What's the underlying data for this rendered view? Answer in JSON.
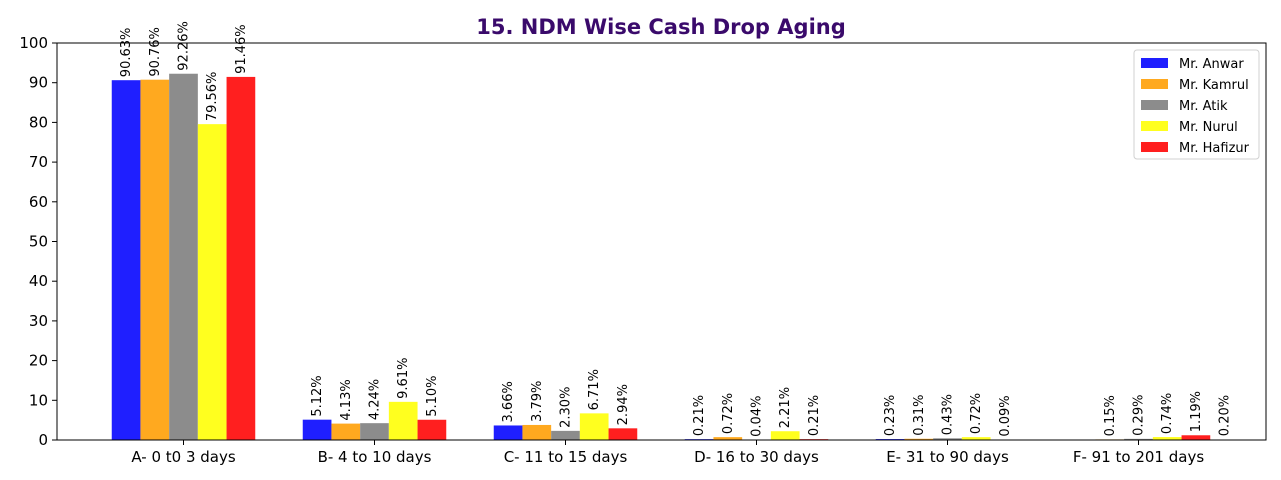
{
  "chart_data": {
    "type": "bar",
    "title": "15. NDM Wise Cash Drop Aging",
    "xlabel": "",
    "ylabel": "",
    "ylim": [
      0,
      100
    ],
    "yticks": [
      "0",
      "10",
      "20",
      "30",
      "40",
      "50",
      "60",
      "70",
      "80",
      "90",
      "100"
    ],
    "grid": false,
    "legend_position": "top-right",
    "categories": [
      "A- 0 t0 3 days",
      "B- 4 to 10 days",
      "C- 11 to 15 days",
      "D- 16 to 30 days",
      "E- 31 to 90 days",
      "F- 91 to 201 days"
    ],
    "series": [
      {
        "name": "Mr. Anwar",
        "color": "#1f1fff",
        "values": [
          90.63,
          5.12,
          3.66,
          0.21,
          0.23,
          null
        ],
        "labels": [
          "90.63%",
          "5.12%",
          "3.66%",
          "0.21%",
          "0.23%",
          ""
        ]
      },
      {
        "name": "Mr. Kamrul",
        "color": "#ffa91f",
        "values": [
          90.76,
          4.13,
          3.79,
          0.72,
          0.31,
          0.15
        ],
        "labels": [
          "90.76%",
          "4.13%",
          "3.79%",
          "0.72%",
          "0.31%",
          "0.15%"
        ]
      },
      {
        "name": "Mr. Atik",
        "color": "#8c8c8c",
        "values": [
          92.26,
          4.24,
          2.3,
          0.04,
          0.43,
          0.29
        ],
        "labels": [
          "92.26%",
          "4.24%",
          "2.30%",
          "0.04%",
          "0.43%",
          "0.29%"
        ]
      },
      {
        "name": "Mr. Nurul",
        "color": "#ffff1f",
        "values": [
          79.56,
          9.61,
          6.71,
          2.21,
          0.72,
          0.74
        ],
        "labels": [
          "79.56%",
          "9.61%",
          "6.71%",
          "2.21%",
          "0.72%",
          "0.74%"
        ]
      },
      {
        "name": "Mr. Hafizur",
        "color": "#ff1f1f",
        "values": [
          91.46,
          5.1,
          2.94,
          0.21,
          0.09,
          1.19
        ],
        "labels": [
          "91.46%",
          "5.10%",
          "2.94%",
          "0.21%",
          "0.09%",
          "1.19%"
        ]
      }
    ],
    "extra_labels": [
      {
        "category_index": 5,
        "slot": 5,
        "value": 0.2,
        "label": "0.20%"
      }
    ]
  }
}
